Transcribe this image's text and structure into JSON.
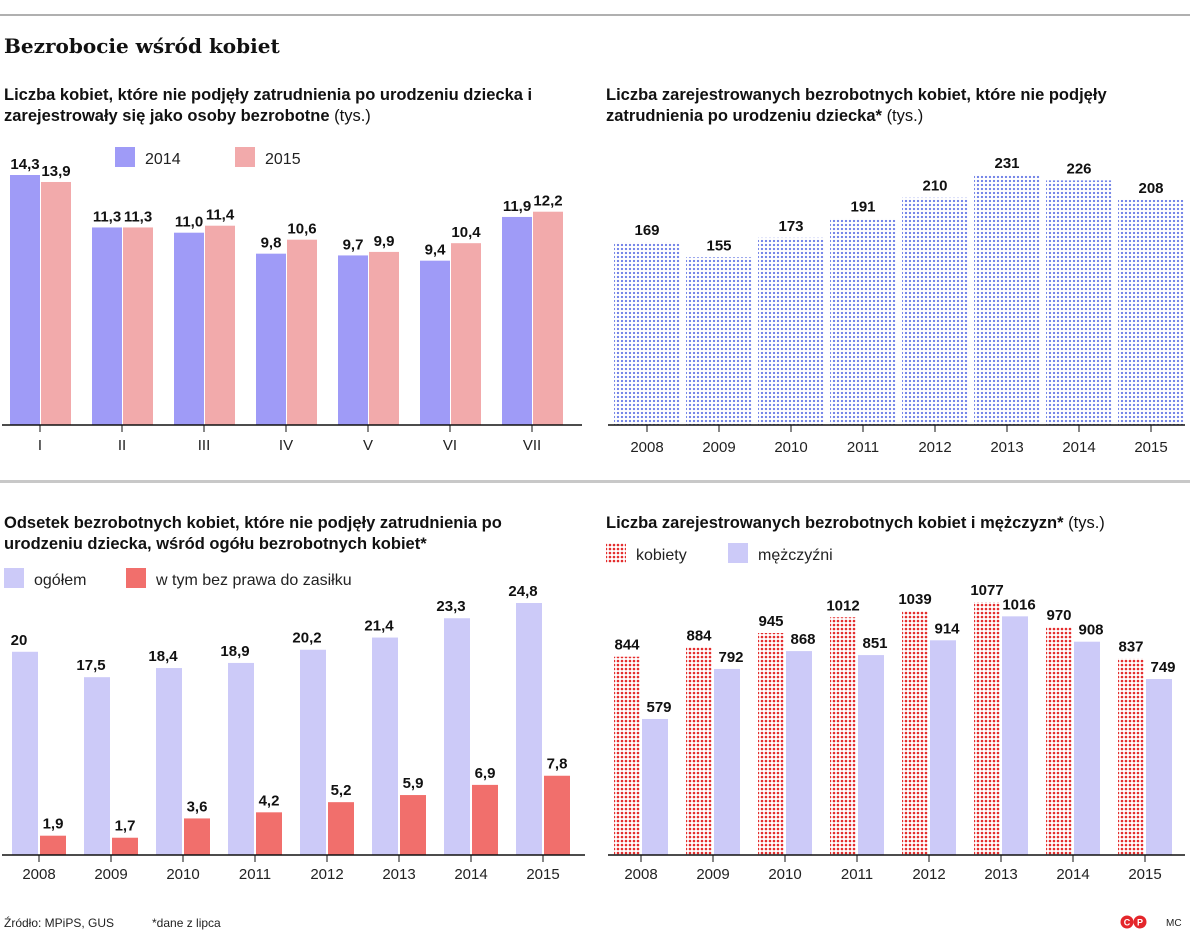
{
  "main_title": "Bezrobocie wśród kobiet",
  "footer": {
    "source": "Źródło: MPiPS, GUS",
    "note": "*dane z lipca",
    "initials": "MC"
  },
  "colors": {
    "blue_2014": "#9f9bf7",
    "pink_2015": "#f2aaab",
    "dotted_blue": "#6c7ee6",
    "lavender": "#cccaf8",
    "salmon": "#f16f6c",
    "red_dotted": "#e42c2c"
  },
  "chart_data": [
    {
      "type": "bar",
      "title": "Liczba kobiet, które nie podjęły zatrudnienia po urodzeniu dziecka i zarejestrowały się jako osoby bezrobotne",
      "unit": "(tys.)",
      "categories": [
        "I",
        "II",
        "III",
        "IV",
        "V",
        "VI",
        "VII"
      ],
      "series": [
        {
          "name": "2014",
          "values": [
            14.3,
            11.3,
            11.0,
            9.8,
            9.7,
            9.4,
            11.9
          ],
          "labels": [
            "14,3",
            "11,3",
            "11,0",
            "9,8",
            "9,7",
            "9,4",
            "11,9"
          ]
        },
        {
          "name": "2015",
          "values": [
            13.9,
            11.3,
            11.4,
            10.6,
            9.9,
            10.4,
            12.2
          ],
          "labels": [
            "13,9",
            "11,3",
            "11,4",
            "10,6",
            "9,9",
            "10,4",
            "12,2"
          ]
        }
      ],
      "legend": "top",
      "grid": false
    },
    {
      "type": "bar",
      "title": "Liczba zarejestrowanych bezrobotnych kobiet, które nie podjęły zatrudnienia po urodzeniu dziecka*",
      "unit": "(tys.)",
      "categories": [
        "2008",
        "2009",
        "2010",
        "2011",
        "2012",
        "2013",
        "2014",
        "2015"
      ],
      "series": [
        {
          "values": [
            169,
            155,
            173,
            191,
            210,
            231,
            226,
            208
          ],
          "labels": [
            "169",
            "155",
            "173",
            "191",
            "210",
            "231",
            "226",
            "208"
          ]
        }
      ],
      "grid": false
    },
    {
      "type": "bar",
      "title": "Odsetek bezrobotnych kobiet, które nie podjęły zatrudnienia po urodzeniu dziecka, wśród ogółu bezrobotnych kobiet*",
      "categories": [
        "2008",
        "2009",
        "2010",
        "2011",
        "2012",
        "2013",
        "2014",
        "2015"
      ],
      "series": [
        {
          "name": "ogółem",
          "values": [
            20,
            17.5,
            18.4,
            18.9,
            20.2,
            21.4,
            23.3,
            24.8
          ],
          "labels": [
            "20",
            "17,5",
            "18,4",
            "18,9",
            "20,2",
            "21,4",
            "23,3",
            "24,8"
          ]
        },
        {
          "name": "w tym bez prawa do zasiłku",
          "values": [
            1.9,
            1.7,
            3.6,
            4.2,
            5.2,
            5.9,
            6.9,
            7.8
          ],
          "labels": [
            "1,9",
            "1,7",
            "3,6",
            "4,2",
            "5,2",
            "5,9",
            "6,9",
            "7,8"
          ]
        }
      ],
      "legend": "top-left",
      "grid": false
    },
    {
      "type": "bar",
      "title": "Liczba zarejestrowanych bezrobotnych kobiet i mężczyzn*",
      "unit": "(tys.)",
      "categories": [
        "2008",
        "2009",
        "2010",
        "2011",
        "2012",
        "2013",
        "2014",
        "2015"
      ],
      "series": [
        {
          "name": "kobiety",
          "values": [
            844,
            884,
            945,
            1012,
            1039,
            1077,
            970,
            837
          ],
          "labels": [
            "844",
            "884",
            "945",
            "1012",
            "1039",
            "1077",
            "970",
            "837"
          ]
        },
        {
          "name": "mężczyźni",
          "values": [
            579,
            792,
            868,
            851,
            914,
            1016,
            908,
            749
          ],
          "labels": [
            "579",
            "792",
            "868",
            "851",
            "914",
            "1016",
            "908",
            "749"
          ]
        }
      ],
      "legend": "top-left",
      "grid": false
    }
  ]
}
